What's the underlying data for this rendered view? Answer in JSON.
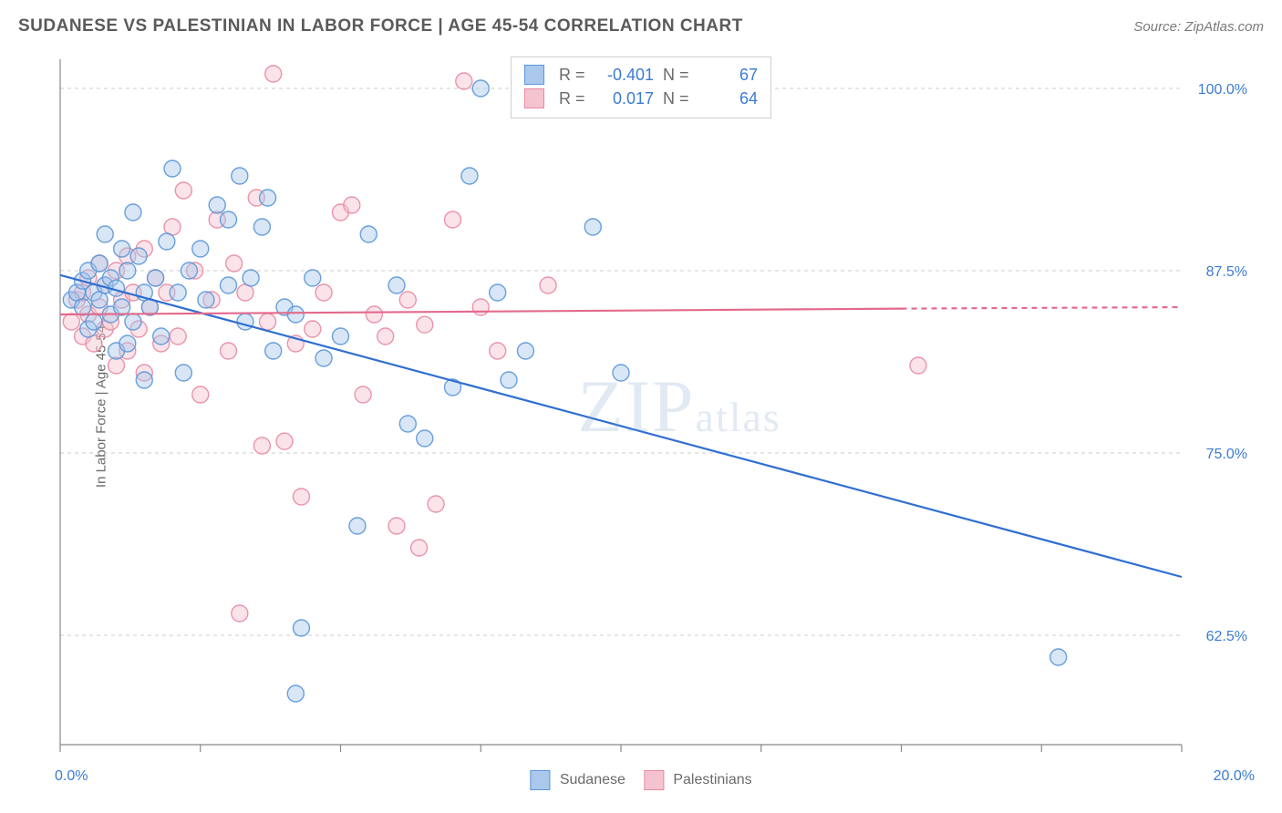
{
  "header": {
    "title": "SUDANESE VS PALESTINIAN IN LABOR FORCE | AGE 45-54 CORRELATION CHART",
    "source_prefix": "Source: ",
    "source_name": "ZipAtlas.com"
  },
  "watermark": {
    "big": "ZIP",
    "small": "atlas"
  },
  "axes": {
    "y_label": "In Labor Force | Age 45-54",
    "x_min": 0.0,
    "x_max": 20.0,
    "y_min": 55.0,
    "y_max": 102.0,
    "x_ticks": [
      0.0,
      2.5,
      5.0,
      7.5,
      10.0,
      12.5,
      15.0,
      17.5,
      20.0
    ],
    "y_gridlines": [
      62.5,
      75.0,
      87.5,
      100.0
    ],
    "x_tick_labels": {
      "min": "0.0%",
      "max": "20.0%"
    },
    "y_tick_labels": [
      "62.5%",
      "75.0%",
      "87.5%",
      "100.0%"
    ],
    "tick_label_color": "#3b7bd4",
    "axis_color": "#888888",
    "grid_color": "#cccccc"
  },
  "chart": {
    "type": "scatter",
    "background_color": "#ffffff",
    "marker_radius": 9,
    "marker_opacity": 0.45,
    "line_width": 2.2,
    "series": [
      {
        "key": "sudanese",
        "label": "Sudanese",
        "color_fill": "#a9c8ec",
        "color_stroke": "#5a97d8",
        "trend_color": "#2f6fd0",
        "R": "-0.401",
        "N": "67",
        "trend": {
          "x1": 0.0,
          "y1": 87.2,
          "x2": 20.0,
          "y2": 66.5
        },
        "points": [
          [
            0.2,
            85.5
          ],
          [
            0.3,
            86.0
          ],
          [
            0.4,
            85.0
          ],
          [
            0.4,
            86.8
          ],
          [
            0.5,
            87.5
          ],
          [
            0.5,
            83.5
          ],
          [
            0.6,
            84.0
          ],
          [
            0.6,
            86.0
          ],
          [
            0.7,
            88.0
          ],
          [
            0.7,
            85.5
          ],
          [
            0.8,
            86.5
          ],
          [
            0.8,
            90.0
          ],
          [
            0.9,
            84.5
          ],
          [
            0.9,
            87.0
          ],
          [
            1.0,
            82.0
          ],
          [
            1.0,
            86.3
          ],
          [
            1.1,
            85.0
          ],
          [
            1.1,
            89.0
          ],
          [
            1.2,
            87.5
          ],
          [
            1.2,
            82.5
          ],
          [
            1.3,
            91.5
          ],
          [
            1.3,
            84.0
          ],
          [
            1.4,
            88.5
          ],
          [
            1.5,
            80.0
          ],
          [
            1.5,
            86.0
          ],
          [
            1.6,
            85.0
          ],
          [
            1.7,
            87.0
          ],
          [
            1.8,
            83.0
          ],
          [
            1.9,
            89.5
          ],
          [
            2.0,
            94.5
          ],
          [
            2.1,
            86.0
          ],
          [
            2.2,
            80.5
          ],
          [
            2.3,
            87.5
          ],
          [
            2.5,
            89.0
          ],
          [
            2.6,
            85.5
          ],
          [
            2.8,
            92.0
          ],
          [
            3.0,
            91.0
          ],
          [
            3.0,
            86.5
          ],
          [
            3.2,
            94.0
          ],
          [
            3.3,
            84.0
          ],
          [
            3.4,
            87.0
          ],
          [
            3.6,
            90.5
          ],
          [
            3.7,
            92.5
          ],
          [
            3.8,
            82.0
          ],
          [
            4.0,
            85.0
          ],
          [
            4.2,
            84.5
          ],
          [
            4.2,
            58.5
          ],
          [
            4.3,
            63.0
          ],
          [
            4.5,
            87.0
          ],
          [
            4.7,
            81.5
          ],
          [
            5.0,
            83.0
          ],
          [
            5.3,
            70.0
          ],
          [
            5.5,
            90.0
          ],
          [
            6.0,
            86.5
          ],
          [
            6.2,
            77.0
          ],
          [
            6.5,
            76.0
          ],
          [
            7.0,
            79.5
          ],
          [
            7.3,
            94.0
          ],
          [
            7.5,
            100.0
          ],
          [
            7.8,
            86.0
          ],
          [
            8.0,
            80.0
          ],
          [
            8.3,
            82.0
          ],
          [
            9.5,
            90.5
          ],
          [
            10.0,
            80.5
          ],
          [
            17.8,
            61.0
          ]
        ]
      },
      {
        "key": "palestinians",
        "label": "Palestinians",
        "color_fill": "#f5c3cf",
        "color_stroke": "#e88aa3",
        "trend_color": "#e36a8c",
        "R": "0.017",
        "N": "64",
        "trend_solid": {
          "x1": 0.0,
          "y1": 84.5,
          "x2": 15.0,
          "y2": 84.9
        },
        "trend_dashed": {
          "x1": 15.0,
          "y1": 84.9,
          "x2": 20.0,
          "y2": 85.0
        },
        "points": [
          [
            0.2,
            84.0
          ],
          [
            0.3,
            85.5
          ],
          [
            0.4,
            83.0
          ],
          [
            0.4,
            86.0
          ],
          [
            0.5,
            84.5
          ],
          [
            0.5,
            87.0
          ],
          [
            0.6,
            82.5
          ],
          [
            0.7,
            85.0
          ],
          [
            0.7,
            88.0
          ],
          [
            0.8,
            83.5
          ],
          [
            0.8,
            86.5
          ],
          [
            0.9,
            84.0
          ],
          [
            1.0,
            87.5
          ],
          [
            1.0,
            81.0
          ],
          [
            1.1,
            85.5
          ],
          [
            1.2,
            88.5
          ],
          [
            1.2,
            82.0
          ],
          [
            1.3,
            86.0
          ],
          [
            1.4,
            83.5
          ],
          [
            1.5,
            89.0
          ],
          [
            1.5,
            80.5
          ],
          [
            1.6,
            85.0
          ],
          [
            1.7,
            87.0
          ],
          [
            1.8,
            82.5
          ],
          [
            1.9,
            86.0
          ],
          [
            2.0,
            90.5
          ],
          [
            2.1,
            83.0
          ],
          [
            2.2,
            93.0
          ],
          [
            2.4,
            87.5
          ],
          [
            2.5,
            79.0
          ],
          [
            2.7,
            85.5
          ],
          [
            2.8,
            91.0
          ],
          [
            3.0,
            82.0
          ],
          [
            3.1,
            88.0
          ],
          [
            3.2,
            64.0
          ],
          [
            3.3,
            86.0
          ],
          [
            3.5,
            92.5
          ],
          [
            3.6,
            75.5
          ],
          [
            3.7,
            84.0
          ],
          [
            3.8,
            101.0
          ],
          [
            4.0,
            75.8
          ],
          [
            4.2,
            82.5
          ],
          [
            4.3,
            72.0
          ],
          [
            4.5,
            83.5
          ],
          [
            4.7,
            86.0
          ],
          [
            5.0,
            91.5
          ],
          [
            5.2,
            92.0
          ],
          [
            5.4,
            79.0
          ],
          [
            5.6,
            84.5
          ],
          [
            5.8,
            83.0
          ],
          [
            6.0,
            70.0
          ],
          [
            6.2,
            85.5
          ],
          [
            6.4,
            68.5
          ],
          [
            6.5,
            83.8
          ],
          [
            6.7,
            71.5
          ],
          [
            7.0,
            91.0
          ],
          [
            7.2,
            100.5
          ],
          [
            7.5,
            85.0
          ],
          [
            7.8,
            82.0
          ],
          [
            8.7,
            86.5
          ],
          [
            15.3,
            81.0
          ]
        ]
      }
    ]
  },
  "stats_legend": {
    "R_label": "R =",
    "N_label": "N ="
  }
}
